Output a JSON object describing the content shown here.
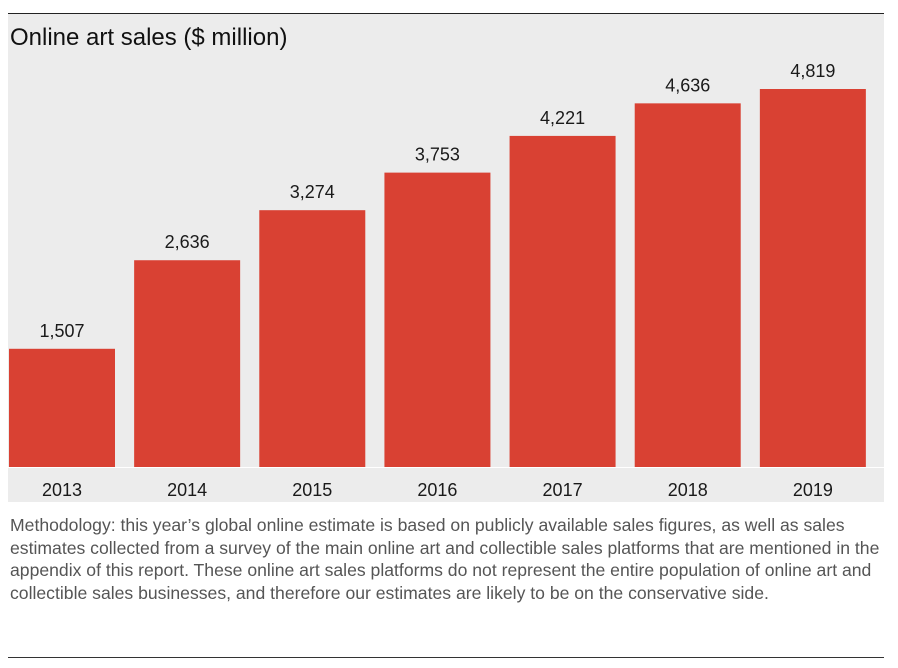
{
  "chart_data": {
    "type": "bar",
    "title": "Online art sales ($ million)",
    "categories": [
      "2013",
      "2014",
      "2015",
      "2016",
      "2017",
      "2018",
      "2019"
    ],
    "values": [
      1507,
      2636,
      3274,
      3753,
      4221,
      4636,
      4819
    ],
    "value_labels": [
      "1,507",
      "2,636",
      "3,274",
      "3,753",
      "4,221",
      "4,636",
      "4,819"
    ],
    "xlabel": "",
    "ylabel": "",
    "grid": false,
    "legend": "none",
    "bar_color": "#d94133",
    "background_color": "#ececec"
  },
  "footnote": "Methodology: this year’s global online estimate is based on publicly available sales figures, as well as sales estimates collected from a survey of the main online art and collectible sales platforms that are mentioned in the appendix of this report. These online art sales platforms do not represent the entire population of online art and collectible sales businesses, and therefore our estimates are likely to be on the conservative side."
}
